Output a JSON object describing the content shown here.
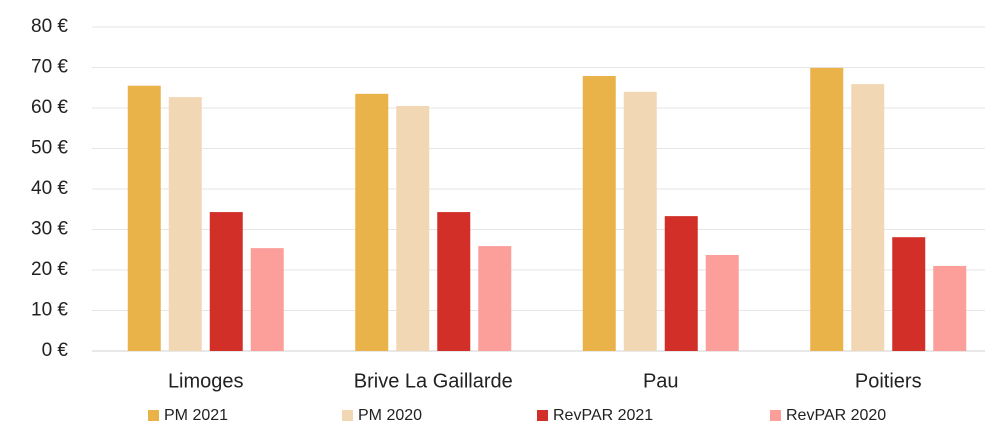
{
  "chart_data": {
    "type": "bar",
    "categories": [
      "Limoges",
      "Brive La Gaillarde",
      "Pau",
      "Poitiers"
    ],
    "series": [
      {
        "name": "PM 2021",
        "color": "#EAB34A",
        "values": [
          65.5,
          63.5,
          67.9,
          69.9
        ]
      },
      {
        "name": "PM 2020",
        "color": "#F2D7B5",
        "values": [
          62.7,
          60.5,
          64,
          65.9
        ]
      },
      {
        "name": "RevPAR 2021",
        "color": "#D12F27",
        "values": [
          34.3,
          34.3,
          33.3,
          28.1
        ]
      },
      {
        "name": "RevPAR 2020",
        "color": "#FC9E9A",
        "values": [
          25.4,
          25.9,
          23.7,
          21
        ]
      }
    ],
    "ylim": [
      0,
      80
    ],
    "yticks": [
      {
        "value": 0,
        "label": "0 €"
      },
      {
        "value": 10,
        "label": "10 €"
      },
      {
        "value": 20,
        "label": "20 €"
      },
      {
        "value": 30,
        "label": "30 €"
      },
      {
        "value": 40,
        "label": "40 €"
      },
      {
        "value": 50,
        "label": "50 €"
      },
      {
        "value": 60,
        "label": "60 €"
      },
      {
        "value": 70,
        "label": "70 €"
      },
      {
        "value": 80,
        "label": "80 €"
      }
    ],
    "grid": true,
    "legend": "bottom"
  }
}
